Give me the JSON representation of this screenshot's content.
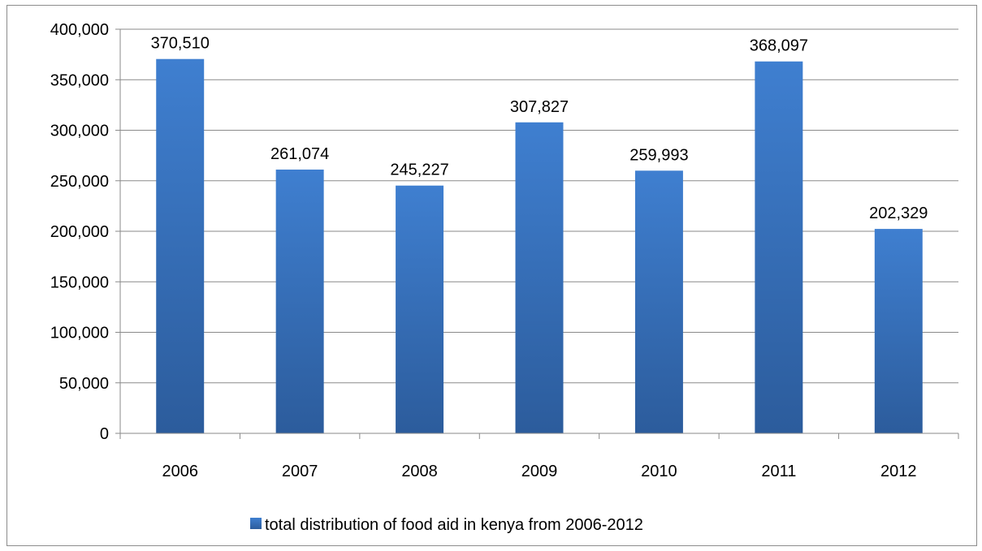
{
  "chart_data": {
    "type": "bar",
    "title": "",
    "xlabel": "",
    "ylabel": "",
    "categories": [
      "2006",
      "2007",
      "2008",
      "2009",
      "2010",
      "2011",
      "2012"
    ],
    "series": [
      {
        "name": "total distribution of food aid in kenya from 2006-2012",
        "values": [
          370510,
          261074,
          245227,
          307827,
          259993,
          368097,
          202329
        ],
        "labels": [
          "370,510",
          "261,074",
          "245,227",
          "307,827",
          "259,993",
          "368,097",
          "202,329"
        ],
        "color": "#3a78c7"
      }
    ],
    "ylim": [
      0,
      400000
    ],
    "yticks": [
      "0",
      "50,000",
      "100,000",
      "150,000",
      "200,000",
      "250,000",
      "300,000",
      "350,000",
      "400,000"
    ],
    "grid": true,
    "legend_position": "bottom"
  }
}
